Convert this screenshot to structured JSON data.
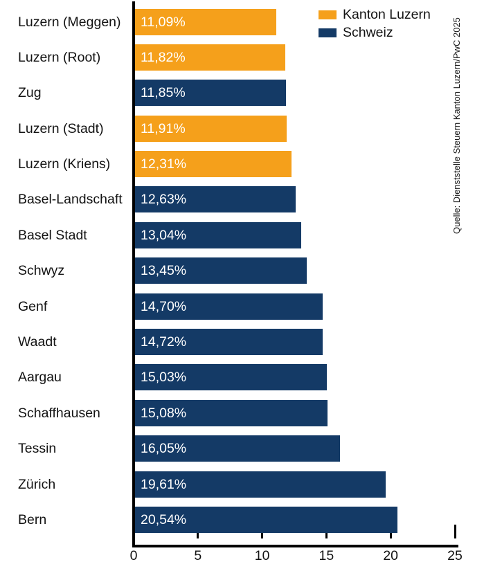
{
  "colors": {
    "kanton_luzern": "#F5A01B",
    "schweiz": "#143A66",
    "axis": "#000000",
    "bar_value_text": "#FFFFFF",
    "label_text": "#131313"
  },
  "legend": {
    "items": [
      {
        "label": "Kanton Luzern",
        "series": "kanton_luzern"
      },
      {
        "label": "Schweiz",
        "series": "schweiz"
      }
    ]
  },
  "source_note": "Quelle: Dienststelle Steuern Kanton Luzern/PwC 2025",
  "chart_data": {
    "type": "bar",
    "orientation": "horizontal",
    "title": "",
    "xlabel": "",
    "ylabel": "",
    "xlim": [
      0,
      25
    ],
    "x_ticks": [
      "0",
      "5",
      "10",
      "15",
      "20",
      "25"
    ],
    "grid": false,
    "legend_position": "top-right",
    "bars": [
      {
        "category": "Luzern (Meggen)",
        "value": 11.09,
        "value_label": "11,09%",
        "series": "kanton_luzern"
      },
      {
        "category": "Luzern (Root)",
        "value": 11.82,
        "value_label": "11,82%",
        "series": "kanton_luzern"
      },
      {
        "category": "Zug",
        "value": 11.85,
        "value_label": "11,85%",
        "series": "schweiz"
      },
      {
        "category": "Luzern (Stadt)",
        "value": 11.91,
        "value_label": "11,91%",
        "series": "kanton_luzern"
      },
      {
        "category": "Luzern (Kriens)",
        "value": 12.31,
        "value_label": "12,31%",
        "series": "kanton_luzern"
      },
      {
        "category": "Basel-Landschaft",
        "value": 12.63,
        "value_label": "12,63%",
        "series": "schweiz"
      },
      {
        "category": "Basel Stadt",
        "value": 13.04,
        "value_label": "13,04%",
        "series": "schweiz"
      },
      {
        "category": "Schwyz",
        "value": 13.45,
        "value_label": "13,45%",
        "series": "schweiz"
      },
      {
        "category": "Genf",
        "value": 14.7,
        "value_label": "14,70%",
        "series": "schweiz"
      },
      {
        "category": "Waadt",
        "value": 14.72,
        "value_label": "14,72%",
        "series": "schweiz"
      },
      {
        "category": "Aargau",
        "value": 15.03,
        "value_label": "15,03%",
        "series": "schweiz"
      },
      {
        "category": "Schaffhausen",
        "value": 15.08,
        "value_label": "15,08%",
        "series": "schweiz"
      },
      {
        "category": "Tessin",
        "value": 16.05,
        "value_label": "16,05%",
        "series": "schweiz"
      },
      {
        "category": "Zürich",
        "value": 19.61,
        "value_label": "19,61%",
        "series": "schweiz"
      },
      {
        "category": "Bern",
        "value": 20.54,
        "value_label": "20,54%",
        "series": "schweiz"
      }
    ]
  }
}
